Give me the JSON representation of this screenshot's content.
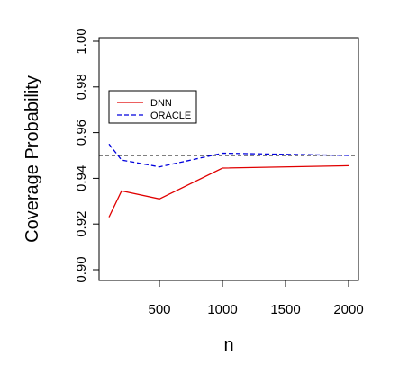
{
  "chart_data": {
    "type": "line",
    "xlabel": "n",
    "ylabel": "Coverage Probability",
    "xlim": [
      100,
      2000
    ],
    "ylim": [
      0.9,
      1.0
    ],
    "xticks": [
      500,
      1000,
      1500,
      2000
    ],
    "xtick_labels": [
      "500",
      "1000",
      "1500",
      "2000"
    ],
    "yticks": [
      0.9,
      0.92,
      0.94,
      0.96,
      0.98,
      1.0
    ],
    "ytick_labels": [
      "0.90",
      "0.92",
      "0.94",
      "0.96",
      "0.98",
      "1.00"
    ],
    "grid": false,
    "legend_position": "upper-left",
    "reference_line": {
      "y": 0.95,
      "style": "dashed",
      "color": "#000000"
    },
    "series": [
      {
        "name": "DNN",
        "color": "#e00000",
        "style": "solid",
        "x": [
          100,
          200,
          500,
          1000,
          2000
        ],
        "y": [
          0.923,
          0.9345,
          0.931,
          0.9445,
          0.9455
        ]
      },
      {
        "name": "ORACLE",
        "color": "#0000dd",
        "style": "dashed",
        "x": [
          100,
          200,
          500,
          1000,
          2000
        ],
        "y": [
          0.955,
          0.948,
          0.945,
          0.951,
          0.95
        ]
      }
    ]
  }
}
